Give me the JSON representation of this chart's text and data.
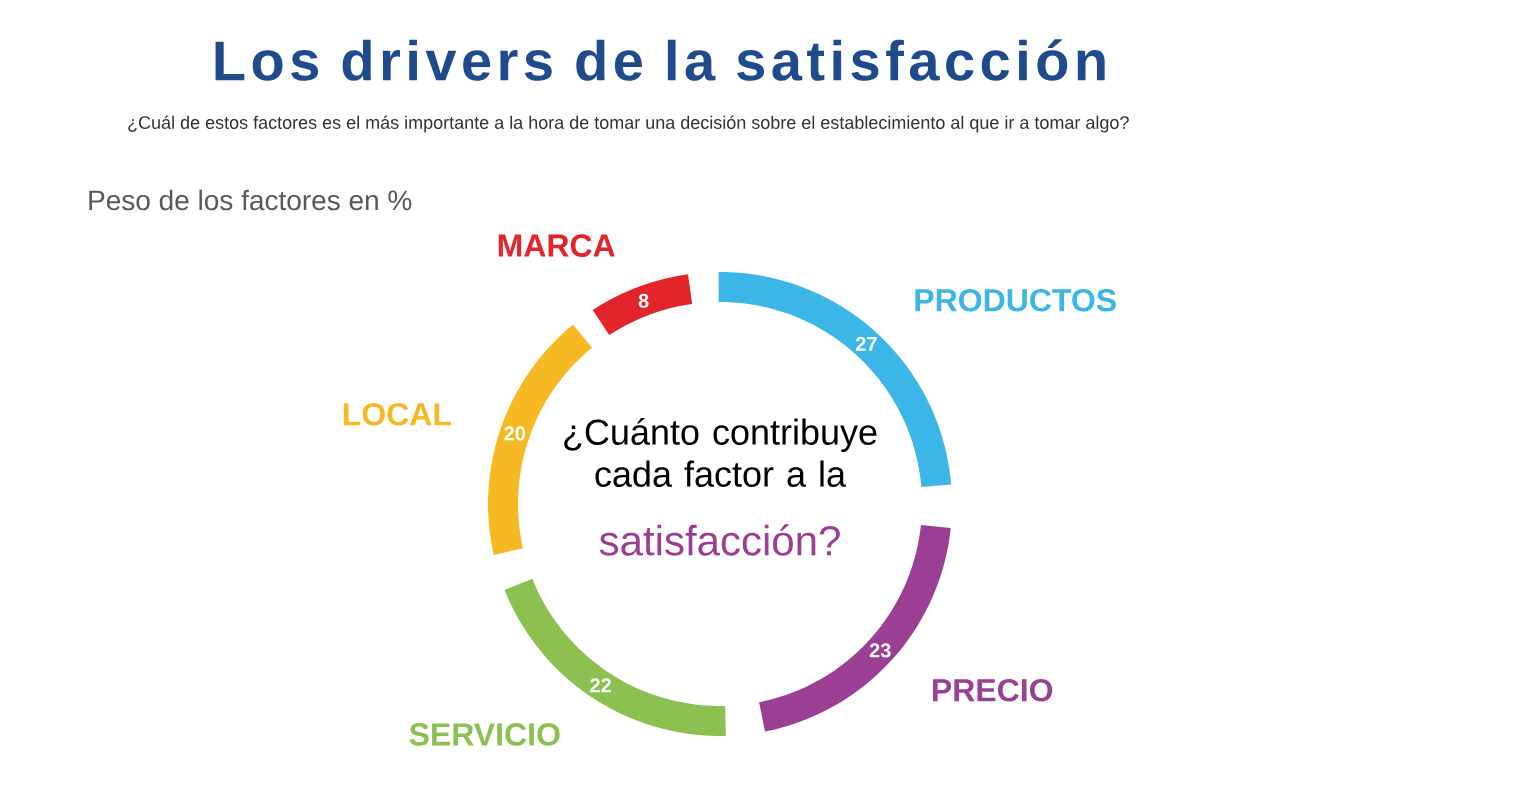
{
  "chart_data": {
    "type": "donut",
    "title": "Los drivers de la satisfacción",
    "subtitle": "¿Cuál de estos factores es el más importante a la hora de tomar una decisión sobre el establecimiento al que ir a tomar algo?",
    "annotations": [
      "Peso de los factores en %",
      "¿Cuánto contribuye cada factor a la",
      "satisfacción?"
    ],
    "categories": [
      "MARCA",
      "PRODUCTOS",
      "PRECIO",
      "SERVICIO",
      "LOCAL"
    ],
    "values": [
      8,
      27,
      23,
      22,
      20
    ],
    "colors": [
      "#e3242b",
      "#3bb6e6",
      "#9b3f94",
      "#8cc152",
      "#f6b823"
    ],
    "data_labels": true,
    "legend": false
  }
}
